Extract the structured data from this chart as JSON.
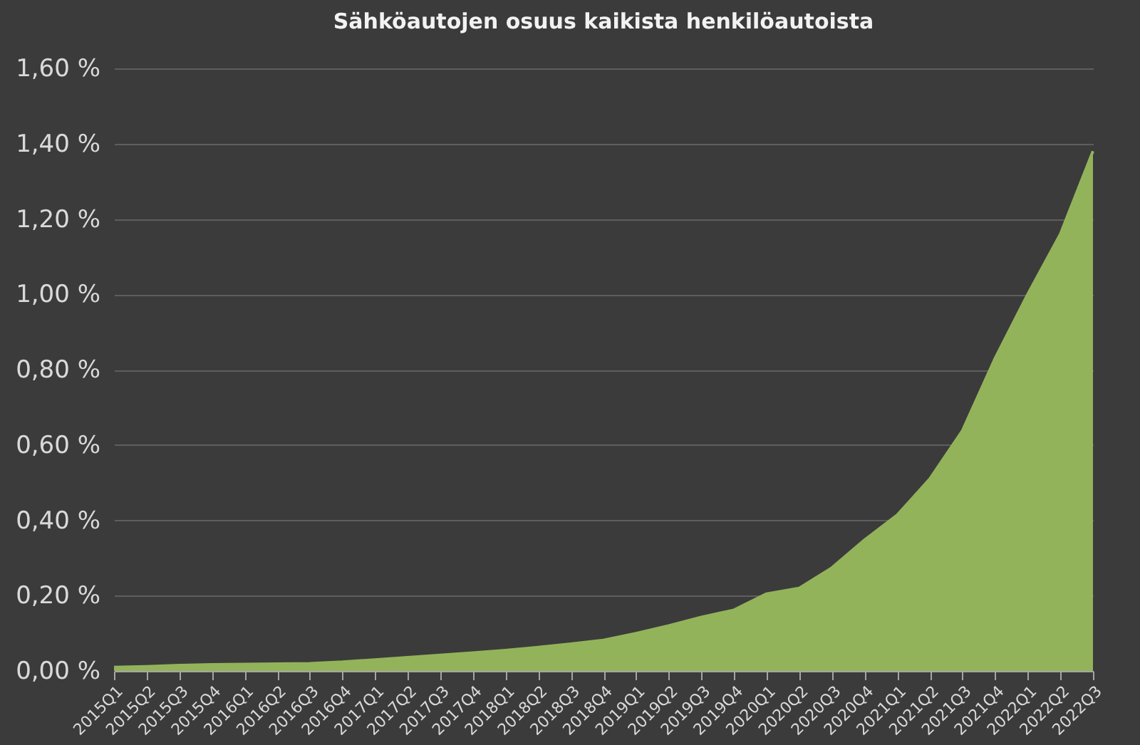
{
  "chart_data": {
    "type": "area",
    "title": "Sähköautojen osuus kaikista henkilöautoista",
    "categories": [
      "2015Q1",
      "2015Q2",
      "2015Q3",
      "2015Q4",
      "2016Q1",
      "2016Q2",
      "2016Q3",
      "2016Q4",
      "2017Q1",
      "2017Q2",
      "2017Q3",
      "2017Q4",
      "2018Q1",
      "2018Q2",
      "2018Q3",
      "2018Q4",
      "2019Q1",
      "2019Q2",
      "2019Q3",
      "2019Q4",
      "2020Q1",
      "2020Q2",
      "2020Q3",
      "2020Q4",
      "2021Q1",
      "2021Q2",
      "2021Q3",
      "2021Q4",
      "2022Q1",
      "2022Q2",
      "2022Q3"
    ],
    "values": [
      0.01,
      0.012,
      0.015,
      0.017,
      0.018,
      0.019,
      0.02,
      0.024,
      0.03,
      0.036,
      0.042,
      0.048,
      0.055,
      0.063,
      0.072,
      0.082,
      0.1,
      0.12,
      0.143,
      0.162,
      0.205,
      0.22,
      0.274,
      0.348,
      0.414,
      0.51,
      0.638,
      0.83,
      1.0,
      1.16,
      1.38
    ],
    "color": "#93b35a",
    "ylim": [
      0,
      1.6
    ],
    "yticks": [
      {
        "value": 0,
        "label": "0,00 %"
      },
      {
        "value": 0.2,
        "label": "0,20 %"
      },
      {
        "value": 0.4,
        "label": "0,40 %"
      },
      {
        "value": 0.6,
        "label": "0,60 %"
      },
      {
        "value": 0.8,
        "label": "0,80 %"
      },
      {
        "value": 1.0,
        "label": "1,00 %"
      },
      {
        "value": 1.2,
        "label": "1,20 %"
      },
      {
        "value": 1.4,
        "label": "1,40 %"
      },
      {
        "value": 1.6,
        "label": "1,60 %"
      }
    ],
    "grid": "y"
  }
}
